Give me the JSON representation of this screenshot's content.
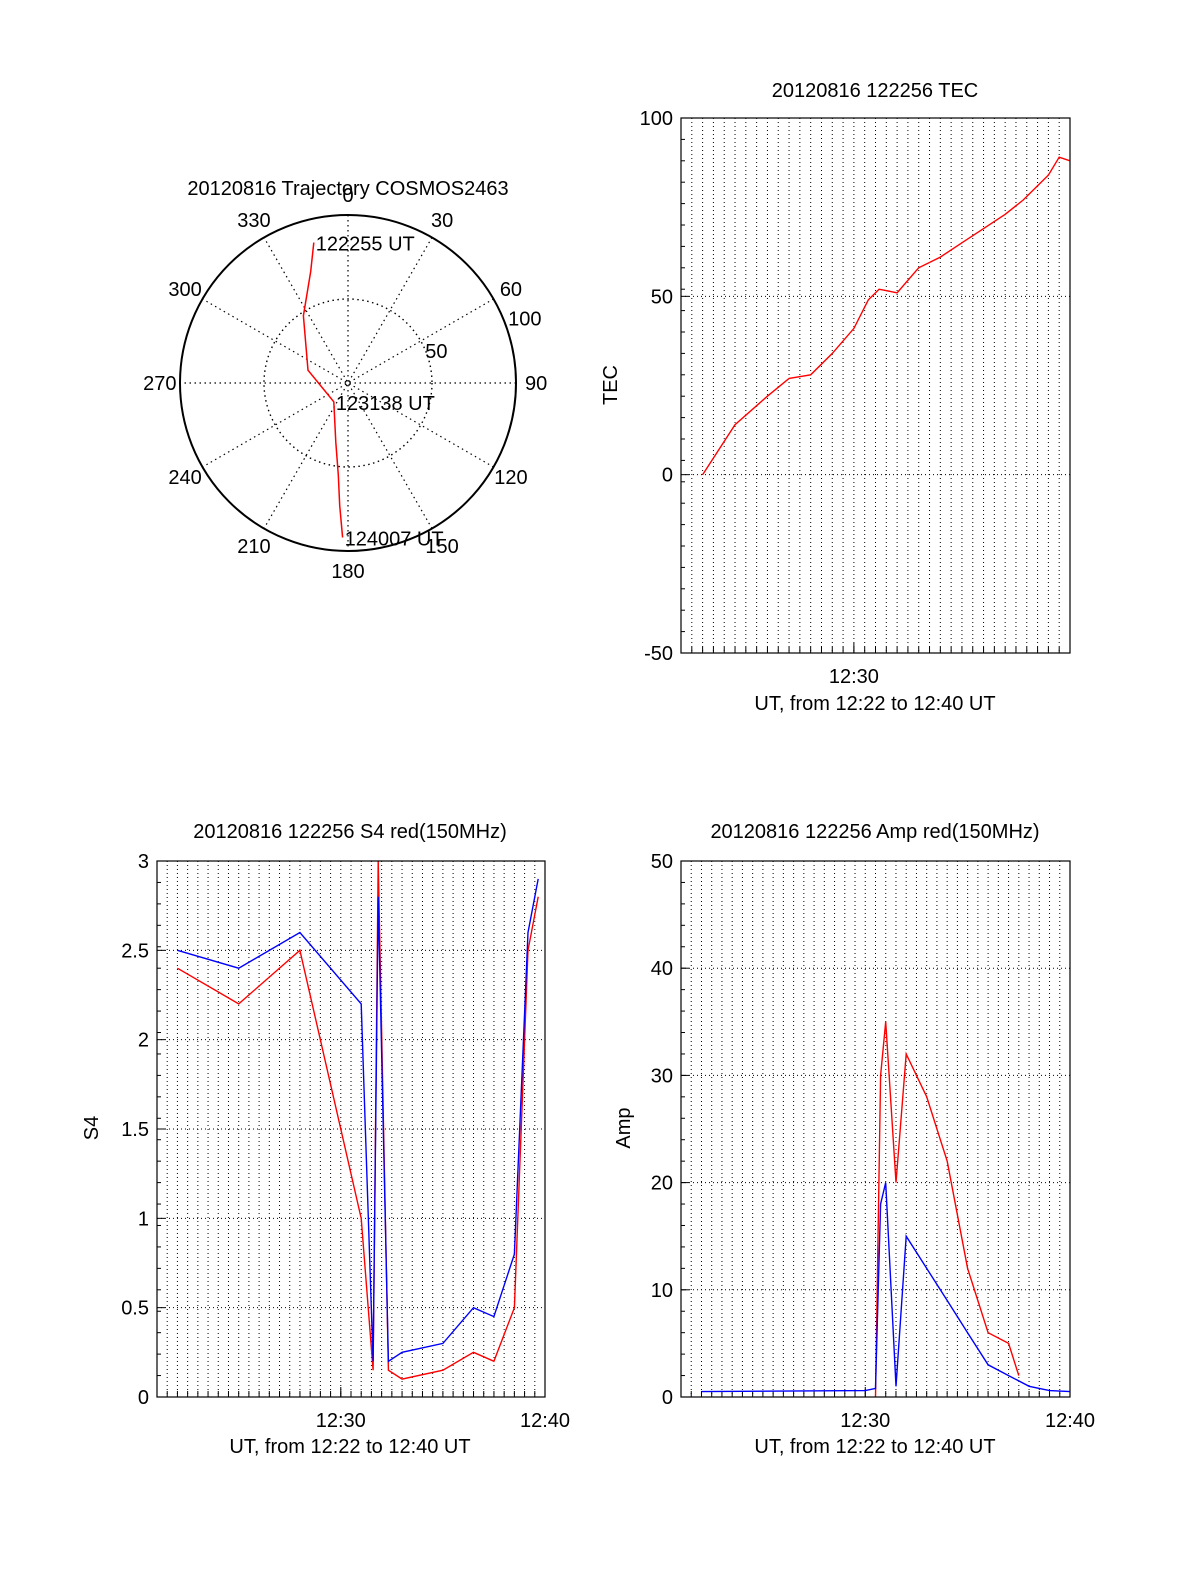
{
  "chart_data": [
    {
      "type": "polar",
      "title": "20120816 Trajectory COSMOS2463",
      "azimuth_labels": [
        "0",
        "30",
        "60",
        "90",
        "120",
        "150",
        "180",
        "210",
        "240",
        "270",
        "300",
        "330"
      ],
      "ring_labels": [
        "50",
        "100"
      ],
      "ring_values": [
        50,
        100
      ],
      "r_max": 100,
      "trajectory": {
        "color": "#ff0000",
        "points": [
          {
            "az": -13.7,
            "r": 86
          },
          {
            "az": -18.5,
            "r": 70
          },
          {
            "az": -33.6,
            "r": 48
          },
          {
            "az": -72.2,
            "r": 25
          },
          {
            "az": -143.0,
            "r": 14
          },
          {
            "az": -168.4,
            "r": 36
          },
          {
            "az": -174.0,
            "r": 55
          },
          {
            "az": -176.1,
            "r": 73
          },
          {
            "az": -178.0,
            "r": 92
          }
        ]
      },
      "annotations": [
        {
          "text": "122255 UT",
          "az": -13.7,
          "r": 86
        },
        {
          "text": "123138 UT",
          "az": -143.0,
          "r": 14
        },
        {
          "text": "124007 UT",
          "az": -178.0,
          "r": 92
        }
      ]
    },
    {
      "type": "line",
      "title": "20120816 122256 TEC",
      "ylabel": "TEC",
      "xlabel": "UT, from 12:22 to 12:40 UT",
      "xlim": [
        "12:22:00",
        "12:40:00"
      ],
      "ylim": [
        -50,
        100
      ],
      "yticks": [
        "100",
        "50",
        "0",
        "-50"
      ],
      "ytick_values": [
        100,
        50,
        0,
        -50
      ],
      "xticks": [
        {
          "label": "12:30",
          "time": "12:30:00"
        }
      ],
      "grid": true,
      "series": [
        {
          "color": "#ff0000",
          "x": [
            "12:23:00",
            "12:24:30",
            "12:26:00",
            "12:27:00",
            "12:28:00",
            "12:29:00",
            "12:30:00",
            "12:30:40",
            "12:31:10",
            "12:32:00",
            "12:33:00",
            "12:34:00",
            "12:35:00",
            "12:36:00",
            "12:37:00",
            "12:37:50",
            "12:38:30",
            "12:39:00",
            "12:39:30",
            "12:40:00"
          ],
          "y": [
            0,
            14,
            22,
            27,
            28,
            34,
            41,
            49,
            52,
            51,
            58,
            61,
            65,
            69,
            73,
            77,
            81,
            84,
            89,
            88
          ]
        }
      ]
    },
    {
      "type": "line",
      "title": "20120816 122256 S4 red(150MHz)",
      "ylabel": "S4",
      "xlabel": "UT, from 12:22 to 12:40 UT",
      "xlim": [
        "12:21:00",
        "12:40:00"
      ],
      "ylim": [
        0,
        3
      ],
      "yticks": [
        "3",
        "2.5",
        "2",
        "1.5",
        "1",
        "0.5",
        "0"
      ],
      "ytick_values": [
        3,
        2.5,
        2,
        1.5,
        1,
        0.5,
        0
      ],
      "xticks": [
        {
          "label": "12:30",
          "time": "12:30:00"
        },
        {
          "label": "12:40",
          "time": "12:40:00"
        }
      ],
      "grid": true,
      "series": [
        {
          "color": "#ff0000",
          "x": [
            "12:22:00",
            "12:25:00",
            "12:28:00",
            "12:31:00",
            "12:31:35",
            "12:31:50",
            "12:32:20",
            "12:33:00",
            "12:35:00",
            "12:36:30",
            "12:37:30",
            "12:38:30",
            "12:39:10",
            "12:39:40"
          ],
          "y": [
            2.4,
            2.2,
            2.5,
            1.0,
            0.15,
            3.0,
            0.15,
            0.1,
            0.15,
            0.25,
            0.2,
            0.5,
            2.5,
            2.8
          ]
        },
        {
          "color": "#0000ff",
          "x": [
            "12:22:00",
            "12:25:00",
            "12:28:00",
            "12:31:00",
            "12:31:35",
            "12:31:50",
            "12:32:20",
            "12:33:00",
            "12:35:00",
            "12:36:30",
            "12:37:30",
            "12:38:30",
            "12:39:10",
            "12:39:40"
          ],
          "y": [
            2.5,
            2.4,
            2.6,
            2.2,
            0.2,
            2.8,
            0.2,
            0.25,
            0.3,
            0.5,
            0.45,
            0.8,
            2.6,
            2.9
          ]
        }
      ]
    },
    {
      "type": "line",
      "title": "20120816 122256 Amp red(150MHz)",
      "ylabel": "Amp",
      "xlabel": "UT, from 12:22 to 12:40 UT",
      "xlim": [
        "12:21:00",
        "12:40:00"
      ],
      "ylim": [
        0,
        50
      ],
      "yticks": [
        "50",
        "40",
        "30",
        "20",
        "10",
        "0"
      ],
      "ytick_values": [
        50,
        40,
        30,
        20,
        10,
        0
      ],
      "xticks": [
        {
          "label": "12:30",
          "time": "12:30:00"
        },
        {
          "label": "12:40",
          "time": "12:40:00"
        }
      ],
      "grid": true,
      "series": [
        {
          "color": "#ff0000",
          "x": [
            "12:30:30",
            "12:30:45",
            "12:31:00",
            "12:31:30",
            "12:32:00",
            "12:33:00",
            "12:34:00",
            "12:35:00",
            "12:36:00",
            "12:37:00",
            "12:37:30"
          ],
          "y": [
            0,
            30,
            35,
            20,
            32,
            28,
            22,
            12,
            6,
            5,
            2
          ]
        },
        {
          "color": "#0000ff",
          "x": [
            "12:22:00",
            "12:30:00",
            "12:30:30",
            "12:30:45",
            "12:31:00",
            "12:31:30",
            "12:32:00",
            "12:33:00",
            "12:34:00",
            "12:35:00",
            "12:36:00",
            "12:37:00",
            "12:38:00",
            "12:39:00",
            "12:40:00"
          ],
          "y": [
            0.5,
            0.6,
            0.8,
            18,
            20,
            1,
            15,
            12,
            9,
            6,
            3,
            2,
            1,
            0.6,
            0.5
          ]
        }
      ]
    }
  ]
}
